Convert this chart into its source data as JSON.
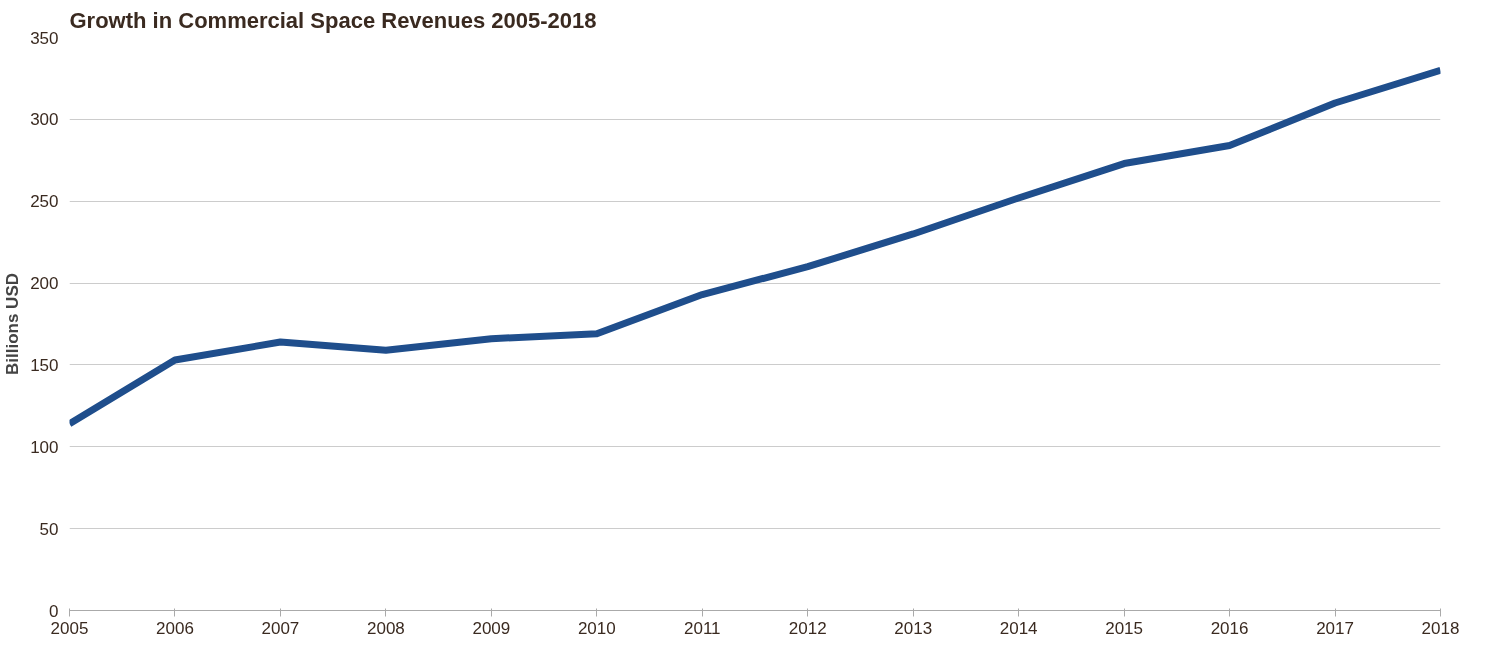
{
  "chart_data": {
    "type": "line",
    "title": "Growth in Commercial Space Revenues 2005-2018",
    "ylabel": "Billions USD",
    "x": [
      2005,
      2006,
      2007,
      2008,
      2009,
      2010,
      2011,
      2012,
      2013,
      2014,
      2015,
      2016,
      2017,
      2018
    ],
    "series": [
      {
        "color": "#1f4e8c",
        "values": [
          114,
          153,
          164,
          159,
          166,
          169,
          193,
          210,
          230,
          252,
          273,
          284,
          310,
          330
        ]
      }
    ],
    "xlim": [
      2005,
      2018
    ],
    "xticks": [
      2005,
      2006,
      2007,
      2008,
      2009,
      2010,
      2011,
      2012,
      2013,
      2014,
      2015,
      2016,
      2017,
      2018
    ],
    "ylim": [
      0,
      350
    ],
    "yticks": [
      0,
      50,
      100,
      150,
      200,
      250,
      300,
      350
    ],
    "grid": "y",
    "line_style": "solid"
  }
}
